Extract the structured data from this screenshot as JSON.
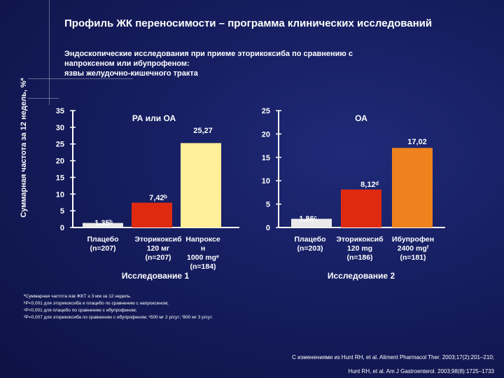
{
  "title": "Профиль ЖК переносимости – программа клинических исследований",
  "subtitle_lines": [
    "Эндоскопические исследования при приеме эторикоксиба по сравнению с",
    "напроксеном или ибупрофеном:",
    "язвы желудочно-кишечного тракта"
  ],
  "y_axis_label": "Суммарная частота за 12 недель, %ª",
  "colors": {
    "background": "#141b5a",
    "placebo": "#e9e9e9",
    "etoricoxib": "#e02a10",
    "comparator": "#ffef99",
    "comparator2": "#f0821e"
  },
  "chart_data": [
    {
      "type": "bar",
      "panel_title": "РА или ОА",
      "study_label": "Исследование 1",
      "ylim": [
        0,
        35
      ],
      "yticks": [
        0,
        5,
        10,
        15,
        20,
        25,
        30,
        35
      ],
      "categories": [
        [
          "Плацебо",
          "(n=207)"
        ],
        [
          "Эторикоксиб",
          "120 мг",
          "(n=207)"
        ],
        [
          "Напроксе",
          "н",
          "1000 mgᵉ",
          "(n=184)"
        ]
      ],
      "values": [
        1.35,
        7.42,
        25.27
      ],
      "value_labels": [
        "1,35ᵇ",
        "7,42ᵇ",
        "25,27"
      ]
    },
    {
      "type": "bar",
      "panel_title": "ОА",
      "study_label": "Исследование 2",
      "ylim": [
        0,
        25
      ],
      "yticks": [
        0,
        5,
        10,
        15,
        20,
        25
      ],
      "categories": [
        [
          "Плацебо",
          "(n=203)"
        ],
        [
          "Эторикоксиб",
          "120 mg",
          "(n=186)"
        ],
        [
          "Ибупрофен",
          "2400 mgᶠ",
          "(n=181)"
        ]
      ],
      "values": [
        1.86,
        8.12,
        17.02
      ],
      "value_labels": [
        "1,86ᶜ",
        "8,12ᵈ",
        "17,02"
      ]
    }
  ],
  "footnotes": [
    "ªСуммарная частота язв ЖКТ ≥ 3 мм за 12 недель.",
    "ᵇP<0,001 для эторикоксиба и плацебо по сравнению с напроксеном;",
    "ᶜP<0,001 для плацебо по сравнению с ибупрофеном;",
    "ᵈP=0,007 для эторикоксиба по сравнению с ибупрофеном; ᵉ500 мг 2 р/сут; ᶠ800 мг 3 р/сут."
  ],
  "references": [
    "С изменениями из Hunt RH, et al. Aliment Pharmacol Ther. 2003;17(2):201–210;",
    "Hunt RH, et al. Am J Gastroenterol. 2003;98(8):1725–1733"
  ]
}
